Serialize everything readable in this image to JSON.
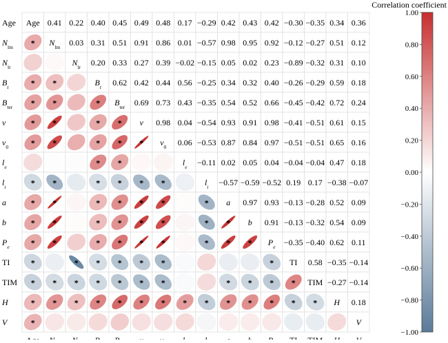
{
  "chart_data": {
    "type": "heatmap",
    "variables": [
      {
        "name": "Age",
        "sub": ""
      },
      {
        "name": "N",
        "sub": "lm"
      },
      {
        "name": "N",
        "sub": "lr"
      },
      {
        "name": "B",
        "sub": "t"
      },
      {
        "name": "B",
        "sub": "ter"
      },
      {
        "name": "v",
        "sub": ""
      },
      {
        "name": "v",
        "sub": "0"
      },
      {
        "name": "l",
        "sub": "e"
      },
      {
        "name": "l",
        "sub": "i"
      },
      {
        "name": "a",
        "sub": ""
      },
      {
        "name": "b",
        "sub": ""
      },
      {
        "name": "P",
        "sub": "e"
      },
      {
        "name": "TI",
        "sub": ""
      },
      {
        "name": "TIM",
        "sub": ""
      },
      {
        "name": "H",
        "sub": ""
      },
      {
        "name": "V",
        "sub": ""
      }
    ],
    "matrix": [
      [
        1,
        0.41,
        0.22,
        0.4,
        0.45,
        0.49,
        0.48,
        0.17,
        -0.29,
        0.42,
        0.43,
        0.42,
        -0.3,
        -0.35,
        0.34,
        0.36
      ],
      [
        0.41,
        1,
        0.03,
        0.31,
        0.51,
        0.91,
        0.86,
        0.01,
        -0.57,
        0.98,
        0.95,
        0.92,
        -0.12,
        -0.27,
        0.51,
        0.12
      ],
      [
        0.22,
        0.03,
        1,
        0.2,
        0.33,
        0.27,
        0.39,
        -0.02,
        -0.15,
        0.05,
        0.02,
        0.23,
        -0.89,
        -0.32,
        0.31,
        0.1
      ],
      [
        0.4,
        0.31,
        0.2,
        1,
        0.62,
        0.42,
        0.44,
        0.56,
        -0.25,
        0.34,
        0.32,
        0.4,
        -0.26,
        -0.29,
        0.59,
        0.18
      ],
      [
        0.45,
        0.51,
        0.33,
        0.62,
        1,
        0.69,
        0.73,
        0.43,
        -0.35,
        0.54,
        0.52,
        0.66,
        -0.45,
        -0.42,
        0.72,
        0.24
      ],
      [
        0.49,
        0.91,
        0.27,
        0.42,
        0.69,
        1,
        0.98,
        0.04,
        -0.54,
        0.93,
        0.91,
        0.98,
        -0.41,
        -0.51,
        0.61,
        0.15
      ],
      [
        0.48,
        0.86,
        0.39,
        0.44,
        0.73,
        0.98,
        1,
        0.06,
        -0.53,
        0.87,
        0.84,
        0.97,
        -0.51,
        -0.51,
        0.65,
        0.16
      ],
      [
        0.17,
        0.01,
        -0.02,
        0.56,
        0.43,
        0.04,
        0.06,
        1,
        -0.11,
        0.02,
        0.05,
        0.04,
        -0.04,
        -0.04,
        0.47,
        0.18
      ],
      [
        -0.29,
        -0.57,
        -0.15,
        -0.25,
        -0.35,
        -0.54,
        -0.53,
        -0.11,
        1,
        -0.57,
        -0.59,
        -0.52,
        0.19,
        0.17,
        -0.38,
        -0.07
      ],
      [
        0.42,
        0.98,
        0.05,
        0.34,
        0.54,
        0.93,
        0.87,
        0.02,
        -0.57,
        1,
        0.97,
        0.93,
        -0.13,
        -0.28,
        0.52,
        0.09
      ],
      [
        0.43,
        0.95,
        0.02,
        0.32,
        0.52,
        0.91,
        0.84,
        0.05,
        -0.59,
        0.97,
        1,
        0.91,
        -0.13,
        -0.32,
        0.54,
        0.09
      ],
      [
        0.42,
        0.92,
        0.23,
        0.4,
        0.66,
        0.98,
        0.97,
        0.04,
        -0.52,
        0.93,
        0.91,
        1,
        -0.35,
        -0.4,
        0.62,
        0.11
      ],
      [
        -0.3,
        -0.12,
        -0.89,
        -0.26,
        -0.45,
        -0.41,
        -0.51,
        -0.04,
        0.19,
        -0.13,
        -0.13,
        -0.35,
        1,
        0.58,
        -0.35,
        -0.14
      ],
      [
        -0.35,
        -0.27,
        -0.32,
        -0.29,
        -0.42,
        -0.51,
        -0.51,
        -0.04,
        0.17,
        -0.28,
        -0.32,
        -0.4,
        0.58,
        1,
        -0.27,
        -0.14
      ],
      [
        0.34,
        0.51,
        0.31,
        0.59,
        0.72,
        0.61,
        0.65,
        0.47,
        -0.38,
        0.52,
        0.54,
        0.62,
        -0.35,
        -0.27,
        1,
        0.18
      ],
      [
        0.36,
        0.12,
        0.1,
        0.18,
        0.24,
        0.15,
        0.16,
        0.18,
        -0.07,
        0.09,
        0.09,
        0.11,
        -0.14,
        -0.14,
        0.18,
        1
      ]
    ],
    "significance_marker": "*",
    "significant_cells": [
      [
        1,
        0
      ],
      [
        3,
        0
      ],
      [
        3,
        1
      ],
      [
        4,
        0
      ],
      [
        4,
        1
      ],
      [
        4,
        3
      ],
      [
        5,
        0
      ],
      [
        5,
        1
      ],
      [
        5,
        3
      ],
      [
        5,
        4
      ],
      [
        6,
        0
      ],
      [
        6,
        1
      ],
      [
        6,
        3
      ],
      [
        6,
        4
      ],
      [
        6,
        5
      ],
      [
        7,
        3
      ],
      [
        7,
        4
      ],
      [
        8,
        0
      ],
      [
        8,
        1
      ],
      [
        8,
        3
      ],
      [
        8,
        4
      ],
      [
        8,
        5
      ],
      [
        8,
        6
      ],
      [
        9,
        0
      ],
      [
        9,
        1
      ],
      [
        9,
        3
      ],
      [
        9,
        4
      ],
      [
        9,
        5
      ],
      [
        9,
        6
      ],
      [
        9,
        8
      ],
      [
        10,
        0
      ],
      [
        10,
        1
      ],
      [
        10,
        3
      ],
      [
        10,
        4
      ],
      [
        10,
        5
      ],
      [
        10,
        6
      ],
      [
        10,
        8
      ],
      [
        10,
        9
      ],
      [
        11,
        0
      ],
      [
        11,
        1
      ],
      [
        11,
        3
      ],
      [
        11,
        4
      ],
      [
        11,
        5
      ],
      [
        11,
        6
      ],
      [
        11,
        8
      ],
      [
        11,
        9
      ],
      [
        11,
        10
      ],
      [
        12,
        0
      ],
      [
        12,
        2
      ],
      [
        12,
        3
      ],
      [
        12,
        4
      ],
      [
        12,
        5
      ],
      [
        12,
        6
      ],
      [
        12,
        11
      ],
      [
        13,
        0
      ],
      [
        13,
        1
      ],
      [
        13,
        2
      ],
      [
        13,
        3
      ],
      [
        13,
        4
      ],
      [
        13,
        5
      ],
      [
        13,
        6
      ],
      [
        13,
        9
      ],
      [
        13,
        10
      ],
      [
        13,
        11
      ],
      [
        13,
        12
      ],
      [
        14,
        0
      ],
      [
        14,
        1
      ],
      [
        14,
        2
      ],
      [
        14,
        3
      ],
      [
        14,
        4
      ],
      [
        14,
        5
      ],
      [
        14,
        6
      ],
      [
        14,
        7
      ],
      [
        14,
        8
      ],
      [
        14,
        9
      ],
      [
        14,
        10
      ],
      [
        14,
        11
      ],
      [
        14,
        12
      ],
      [
        14,
        13
      ],
      [
        15,
        0
      ]
    ],
    "colorbar": {
      "title": "Correlation coefficient",
      "range": [
        -1,
        1
      ],
      "ticks": [
        "1.00",
        "0.80",
        "0.60",
        "0.40",
        "0.20",
        "0.00",
        "−0.20",
        "−0.40",
        "−0.60",
        "−0.80",
        "−1.00"
      ],
      "tick_values": [
        1,
        0.8,
        0.6,
        0.4,
        0.2,
        0,
        -0.2,
        -0.4,
        -0.6,
        -0.8,
        -1
      ],
      "color_negative": "#5b7b99",
      "color_zero": "#ffffff",
      "color_positive": "#c62f2f"
    },
    "upper_triangle": "numbers",
    "lower_triangle": "ellipses",
    "diagonal": "variable labels"
  }
}
